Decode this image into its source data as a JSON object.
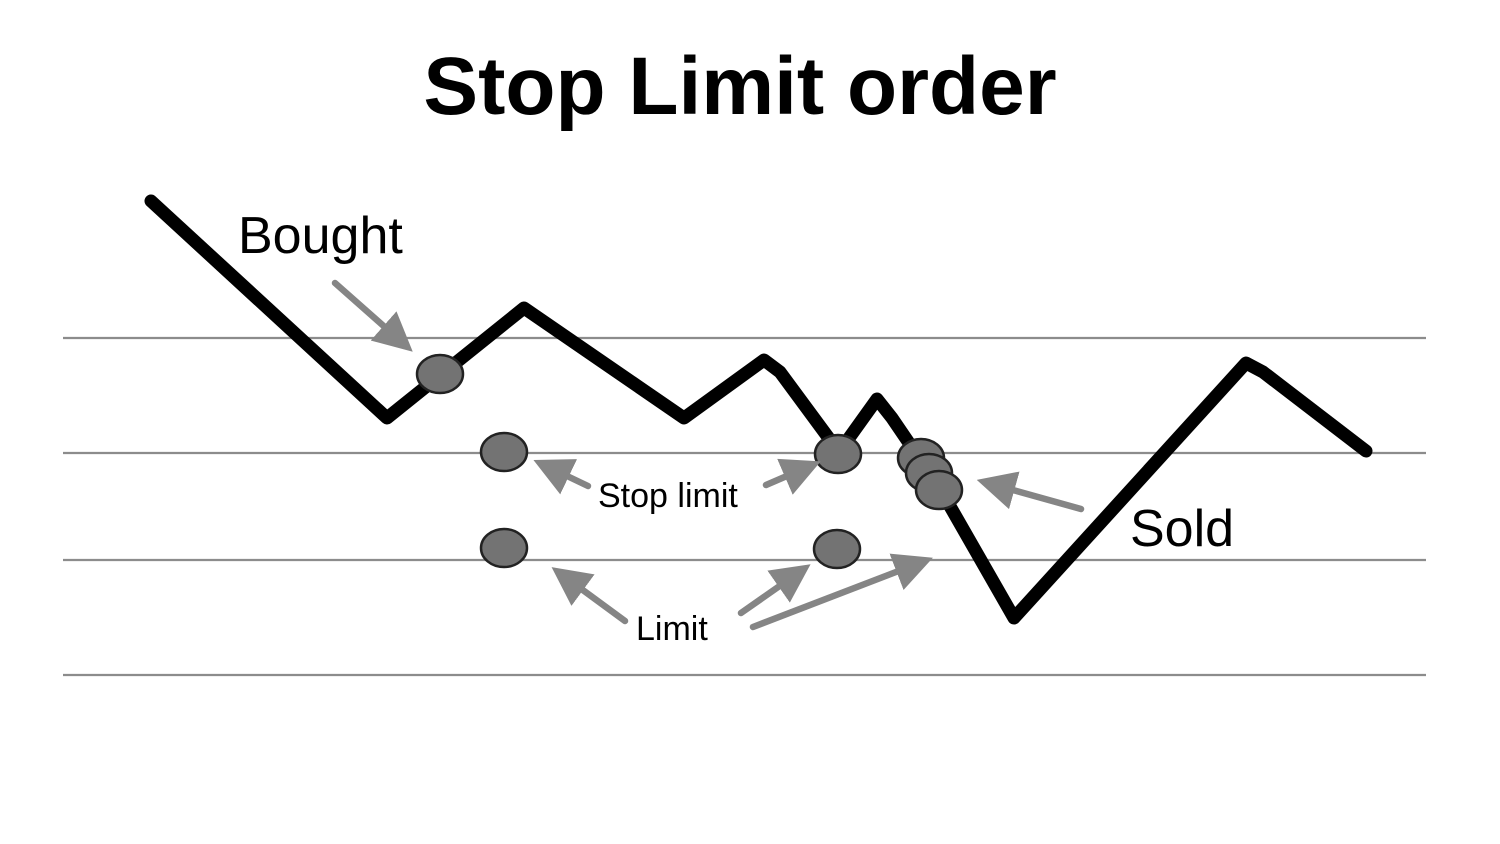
{
  "title": "Stop Limit order",
  "labels": {
    "bought": "Bought",
    "stop_limit": "Stop limit",
    "limit": "Limit",
    "sold": "Sold"
  },
  "colors": {
    "background": "#ffffff",
    "price_line": "#000000",
    "grid": "#8c8c8c",
    "marker_fill": "#737373",
    "arrow": "#858585",
    "text": "#000000"
  }
}
